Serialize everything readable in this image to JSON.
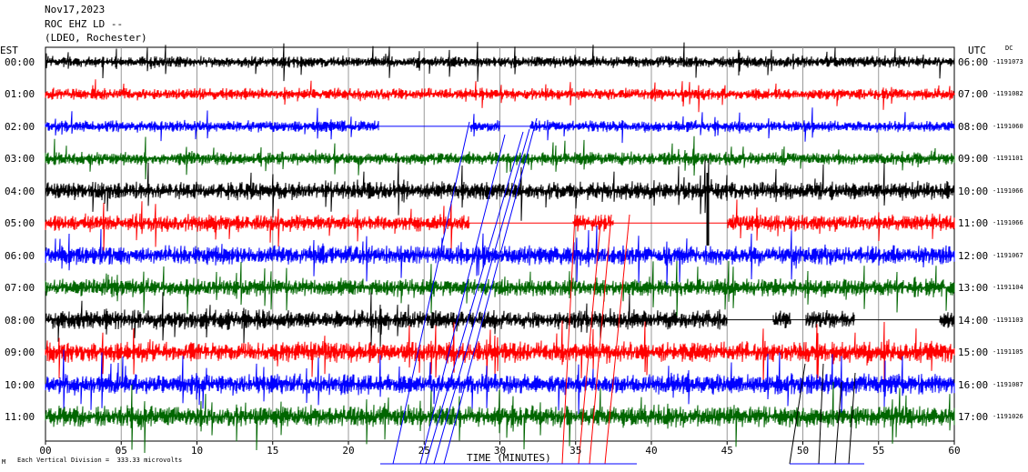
{
  "header": {
    "date": "Nov17,2023",
    "station": "ROC EHZ LD --",
    "network": "(LDEO, Rochester)"
  },
  "left_timezone": "EST",
  "right_timezone": "UTC",
  "dc_label": "DC",
  "footer_note": "Each Vertical Division =  333.33 microvolts",
  "footer_mark": "M",
  "chart_data": {
    "type": "line",
    "subtype": "helicorder",
    "xlabel": "TIME (MINUTES)",
    "xlim": [
      0,
      60
    ],
    "x_ticks": [
      "00",
      "05",
      "10",
      "15",
      "20",
      "25",
      "30",
      "35",
      "40",
      "45",
      "50",
      "55",
      "60"
    ],
    "grid": true,
    "trace_colors": [
      "#000000",
      "#ff0000",
      "#0000ff",
      "#006600"
    ],
    "rows": [
      {
        "left": "00:00",
        "right": "06:00",
        "dc": "1191073",
        "color": "#000000",
        "amp": 0.9,
        "gaps": []
      },
      {
        "left": "01:00",
        "right": "07:00",
        "dc": "1191082",
        "color": "#ff0000",
        "amp": 0.9,
        "gaps": []
      },
      {
        "left": "02:00",
        "right": "08:00",
        "dc": "1191060",
        "color": "#0000ff",
        "amp": 0.9,
        "gaps": [
          [
            22.0,
            28.0
          ],
          [
            30.0,
            32.0
          ]
        ]
      },
      {
        "left": "03:00",
        "right": "09:00",
        "dc": "1191101",
        "color": "#006600",
        "amp": 1.0,
        "gaps": []
      },
      {
        "left": "04:00",
        "right": "10:00",
        "dc": "1191066",
        "color": "#000000",
        "amp": 1.4,
        "gaps": []
      },
      {
        "left": "05:00",
        "right": "11:00",
        "dc": "1191066",
        "color": "#ff0000",
        "amp": 1.3,
        "gaps": [
          [
            28.0,
            34.8
          ],
          [
            37.5,
            45.0
          ]
        ]
      },
      {
        "left": "06:00",
        "right": "12:00",
        "dc": "1191067",
        "color": "#0000ff",
        "amp": 1.5,
        "gaps": []
      },
      {
        "left": "07:00",
        "right": "13:00",
        "dc": "1191104",
        "color": "#006600",
        "amp": 1.4,
        "gaps": []
      },
      {
        "left": "08:00",
        "right": "14:00",
        "dc": "1191103",
        "color": "#000000",
        "amp": 1.5,
        "gaps": [
          [
            45.0,
            48.0
          ],
          [
            49.2,
            50.2
          ],
          [
            53.4,
            59.0
          ]
        ]
      },
      {
        "left": "09:00",
        "right": "15:00",
        "dc": "1191105",
        "color": "#ff0000",
        "amp": 1.6,
        "gaps": []
      },
      {
        "left": "10:00",
        "right": "16:00",
        "dc": "1191087",
        "color": "#0000ff",
        "amp": 1.6,
        "gaps": []
      },
      {
        "left": "11:00",
        "right": "17:00",
        "dc": "1191026",
        "color": "#006600",
        "amp": 1.7,
        "gaps": []
      }
    ]
  }
}
